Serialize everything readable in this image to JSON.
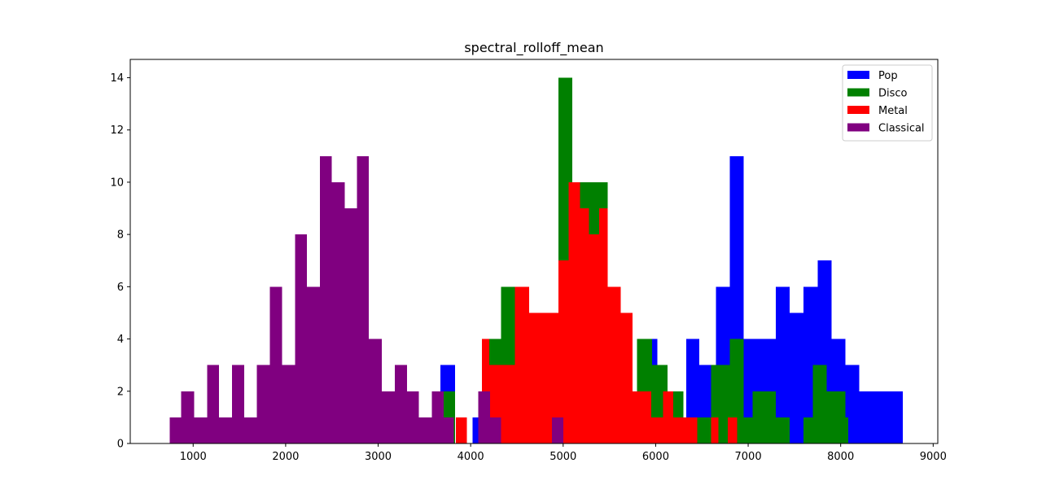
{
  "chart_data": {
    "type": "bar",
    "subtype": "histogram-overlay",
    "title": "spectral_rolloff_mean",
    "xlabel": "",
    "ylabel": "",
    "xlim": [
      320,
      9050
    ],
    "ylim": [
      0,
      14.7
    ],
    "x_ticks": [
      1000,
      2000,
      3000,
      4000,
      5000,
      6000,
      7000,
      8000,
      9000
    ],
    "y_ticks": [
      0,
      2,
      4,
      6,
      8,
      10,
      12,
      14
    ],
    "grid": false,
    "legend_position": "top-right",
    "series": [
      {
        "name": "Pop",
        "color": "#0000ff",
        "bins": [
          [
            3673,
            3830,
            3
          ],
          [
            4020,
            4100,
            1
          ],
          [
            5875,
            6020,
            4
          ],
          [
            6330,
            6470,
            4
          ],
          [
            6470,
            6650,
            3
          ],
          [
            6650,
            6800,
            6
          ],
          [
            6800,
            6950,
            11
          ],
          [
            6950,
            7300,
            4
          ],
          [
            7300,
            7450,
            6
          ],
          [
            7450,
            7600,
            5
          ],
          [
            7600,
            7750,
            6
          ],
          [
            7750,
            7900,
            7
          ],
          [
            7900,
            8050,
            4
          ],
          [
            8050,
            8200,
            3
          ],
          [
            8200,
            8670,
            2
          ]
        ]
      },
      {
        "name": "Disco",
        "color": "#008000",
        "bins": [
          [
            3700,
            3830,
            2
          ],
          [
            4200,
            4330,
            4
          ],
          [
            4330,
            4480,
            6
          ],
          [
            4480,
            4950,
            5
          ],
          [
            4950,
            5100,
            14
          ],
          [
            5100,
            5320,
            10
          ],
          [
            5320,
            5480,
            10
          ],
          [
            5480,
            5540,
            6
          ],
          [
            5800,
            5960,
            4
          ],
          [
            5960,
            6130,
            3
          ],
          [
            6130,
            6300,
            2
          ],
          [
            6300,
            6330,
            1
          ],
          [
            6450,
            6600,
            1
          ],
          [
            6600,
            6800,
            3
          ],
          [
            6800,
            6950,
            4
          ],
          [
            6950,
            7050,
            1
          ],
          [
            7050,
            7300,
            2
          ],
          [
            7300,
            7450,
            1
          ],
          [
            7600,
            7700,
            1
          ],
          [
            7700,
            7850,
            3
          ],
          [
            7850,
            8050,
            2
          ],
          [
            8050,
            8080,
            1
          ]
        ]
      },
      {
        "name": "Metal",
        "color": "#ff0000",
        "bins": [
          [
            3840,
            3960,
            1
          ],
          [
            4120,
            4200,
            4
          ],
          [
            4200,
            4480,
            3
          ],
          [
            4480,
            4630,
            6
          ],
          [
            4630,
            4800,
            5
          ],
          [
            4800,
            4950,
            5
          ],
          [
            4950,
            5060,
            7
          ],
          [
            5060,
            5180,
            10
          ],
          [
            5180,
            5280,
            9
          ],
          [
            5280,
            5390,
            8
          ],
          [
            5390,
            5480,
            9
          ],
          [
            5480,
            5620,
            6
          ],
          [
            5620,
            5750,
            5
          ],
          [
            5750,
            5950,
            2
          ],
          [
            5950,
            6080,
            1
          ],
          [
            6080,
            6190,
            2
          ],
          [
            6190,
            6300,
            1
          ],
          [
            6300,
            6450,
            1
          ],
          [
            6600,
            6680,
            1
          ],
          [
            6780,
            6880,
            1
          ]
        ]
      },
      {
        "name": "Classical",
        "color": "#800080",
        "bins": [
          [
            745,
            870,
            1
          ],
          [
            870,
            1010,
            2
          ],
          [
            1010,
            1150,
            1
          ],
          [
            1150,
            1280,
            3
          ],
          [
            1280,
            1420,
            1
          ],
          [
            1420,
            1550,
            3
          ],
          [
            1550,
            1690,
            1
          ],
          [
            1690,
            1830,
            3
          ],
          [
            1830,
            1960,
            6
          ],
          [
            1960,
            2100,
            3
          ],
          [
            2100,
            2230,
            8
          ],
          [
            2230,
            2370,
            6
          ],
          [
            2370,
            2500,
            11
          ],
          [
            2500,
            2640,
            10
          ],
          [
            2640,
            2770,
            9
          ],
          [
            2770,
            2900,
            11
          ],
          [
            2900,
            3040,
            4
          ],
          [
            3040,
            3180,
            2
          ],
          [
            3180,
            3310,
            3
          ],
          [
            3310,
            3440,
            2
          ],
          [
            3440,
            3580,
            1
          ],
          [
            3580,
            3710,
            2
          ],
          [
            3710,
            3820,
            1
          ],
          [
            4080,
            4210,
            2
          ],
          [
            4210,
            4330,
            1
          ],
          [
            4880,
            5000,
            1
          ]
        ]
      }
    ]
  }
}
